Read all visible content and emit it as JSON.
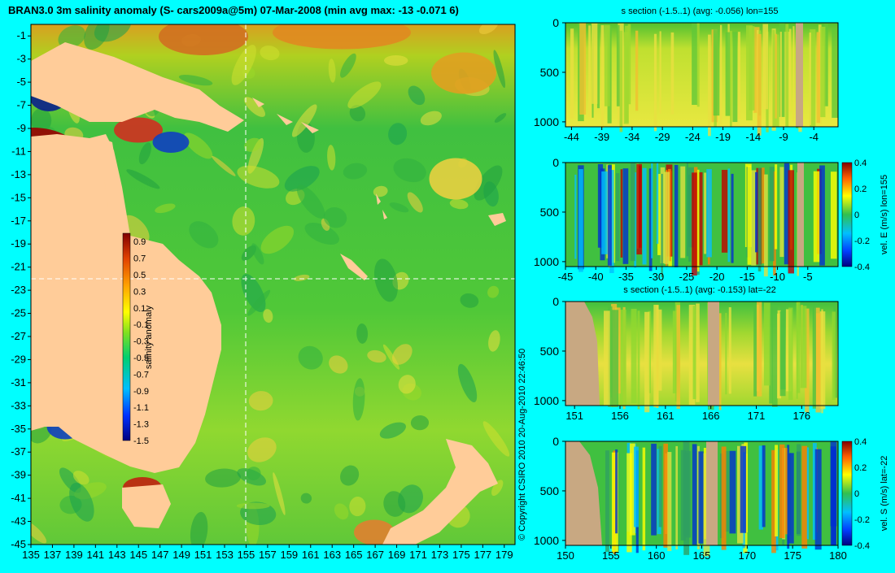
{
  "main_title": "BRAN3.0 3m salinity anomaly (S- cars2009a@5m) 07-Mar-2008 (min avg max: -13 -0.071 6)",
  "copyright": "© Copyright CSIRO 2010   20-Aug-2010 22:46:50",
  "colors": {
    "background": "#00ffff",
    "land": "#ffcc99",
    "section_land": "#c8a882",
    "crosshair": "#ffffff"
  },
  "chart_data": [
    {
      "type": "heatmap",
      "panel": "map",
      "title": "BRAN3.0 3m salinity anomaly (S- cars2009a@5m) 07-Mar-2008 (min avg max: -13 -0.071 6)",
      "xlabel": "",
      "ylabel": "",
      "x_ticks": [
        135,
        137,
        139,
        141,
        143,
        145,
        147,
        149,
        151,
        153,
        155,
        157,
        159,
        161,
        163,
        165,
        167,
        169,
        171,
        173,
        175,
        177,
        179
      ],
      "y_ticks": [
        -1,
        -3,
        -5,
        -7,
        -9,
        -11,
        -13,
        -15,
        -17,
        -19,
        -21,
        -23,
        -25,
        -27,
        -29,
        -31,
        -33,
        -35,
        -37,
        -39,
        -41,
        -43,
        -45
      ],
      "xlim": [
        135,
        180
      ],
      "ylim": [
        -45,
        0
      ],
      "crosshair": {
        "lon": 155,
        "lat": -22
      },
      "colorbar": {
        "label": "salinity anomaly",
        "ticks": [
          "0.9",
          "0.7",
          "0.5",
          "0.3",
          "0.1",
          "-0.1",
          "-0.3",
          "-0.5",
          "-0.7",
          "-0.9",
          "-1.1",
          "-1.3",
          "-1.5"
        ],
        "range": [
          -1.5,
          1.0
        ]
      },
      "summary": {
        "min": -13,
        "avg": -0.071,
        "max": 6
      }
    },
    {
      "type": "heatmap",
      "panel": "section_s_lon",
      "title": "s section (-1.5..1) (avg: -0.056) lon=155",
      "x_ticks": [
        "-44",
        "-39",
        "-34",
        "-29",
        "-24",
        "-19",
        "-14",
        "-9",
        "-4"
      ],
      "y_ticks": [
        "0",
        "500",
        "1000"
      ],
      "xlim": [
        -45,
        0
      ],
      "ylim": [
        1050,
        0
      ],
      "side_label": ""
    },
    {
      "type": "heatmap",
      "panel": "section_u_lon",
      "title": "",
      "x_ticks": [
        "-45",
        "-40",
        "-35",
        "-30",
        "-25",
        "-20",
        "-15",
        "-10",
        "-5"
      ],
      "y_ticks": [
        "0",
        "500",
        "1000"
      ],
      "xlim": [
        -45,
        0
      ],
      "ylim": [
        1050,
        0
      ],
      "side_label": "vel. E (m/s) lon=155",
      "colorbar": {
        "ticks": [
          "0.4",
          "0.2",
          "0",
          "-0.2",
          "-0.4"
        ],
        "range": [
          -0.4,
          0.4
        ]
      }
    },
    {
      "type": "heatmap",
      "panel": "section_s_lat",
      "title": "s section (-1.5..1) (avg: -0.153) lat=-22",
      "x_ticks": [
        "151",
        "156",
        "161",
        "166",
        "171",
        "176"
      ],
      "y_ticks": [
        "0",
        "500",
        "1000"
      ],
      "xlim": [
        150,
        180
      ],
      "ylim": [
        1050,
        0
      ],
      "side_label": ""
    },
    {
      "type": "heatmap",
      "panel": "section_v_lat",
      "title": "",
      "x_ticks": [
        "150",
        "155",
        "160",
        "165",
        "170",
        "175",
        "180"
      ],
      "y_ticks": [
        "0",
        "500",
        "1000"
      ],
      "xlim": [
        150,
        180
      ],
      "ylim": [
        1050,
        0
      ],
      "side_label": "vel. S (m/s) lat=-22",
      "colorbar": {
        "ticks": [
          "0.4",
          "0.2",
          "0",
          "-0.2",
          "-0.4"
        ],
        "range": [
          -0.4,
          0.4
        ]
      }
    }
  ]
}
